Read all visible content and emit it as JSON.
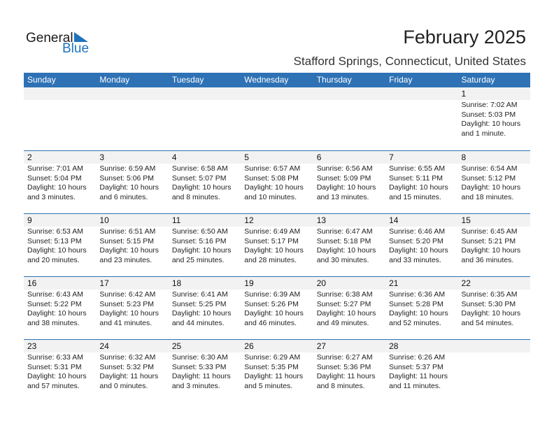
{
  "logo": {
    "general": "General",
    "blue": "Blue"
  },
  "title": "February 2025",
  "location": "Stafford Springs, Connecticut, United States",
  "days": [
    "Sunday",
    "Monday",
    "Tuesday",
    "Wednesday",
    "Thursday",
    "Friday",
    "Saturday"
  ],
  "accent": "#2e72b5",
  "weeks": [
    [
      null,
      null,
      null,
      null,
      null,
      null,
      {
        "d": "1",
        "sr": "Sunrise: 7:02 AM",
        "ss": "Sunset: 5:03 PM",
        "dl": "Daylight: 10 hours",
        "dm": "and 1 minute."
      }
    ],
    [
      {
        "d": "2",
        "sr": "Sunrise: 7:01 AM",
        "ss": "Sunset: 5:04 PM",
        "dl": "Daylight: 10 hours",
        "dm": "and 3 minutes."
      },
      {
        "d": "3",
        "sr": "Sunrise: 6:59 AM",
        "ss": "Sunset: 5:06 PM",
        "dl": "Daylight: 10 hours",
        "dm": "and 6 minutes."
      },
      {
        "d": "4",
        "sr": "Sunrise: 6:58 AM",
        "ss": "Sunset: 5:07 PM",
        "dl": "Daylight: 10 hours",
        "dm": "and 8 minutes."
      },
      {
        "d": "5",
        "sr": "Sunrise: 6:57 AM",
        "ss": "Sunset: 5:08 PM",
        "dl": "Daylight: 10 hours",
        "dm": "and 10 minutes."
      },
      {
        "d": "6",
        "sr": "Sunrise: 6:56 AM",
        "ss": "Sunset: 5:09 PM",
        "dl": "Daylight: 10 hours",
        "dm": "and 13 minutes."
      },
      {
        "d": "7",
        "sr": "Sunrise: 6:55 AM",
        "ss": "Sunset: 5:11 PM",
        "dl": "Daylight: 10 hours",
        "dm": "and 15 minutes."
      },
      {
        "d": "8",
        "sr": "Sunrise: 6:54 AM",
        "ss": "Sunset: 5:12 PM",
        "dl": "Daylight: 10 hours",
        "dm": "and 18 minutes."
      }
    ],
    [
      {
        "d": "9",
        "sr": "Sunrise: 6:53 AM",
        "ss": "Sunset: 5:13 PM",
        "dl": "Daylight: 10 hours",
        "dm": "and 20 minutes."
      },
      {
        "d": "10",
        "sr": "Sunrise: 6:51 AM",
        "ss": "Sunset: 5:15 PM",
        "dl": "Daylight: 10 hours",
        "dm": "and 23 minutes."
      },
      {
        "d": "11",
        "sr": "Sunrise: 6:50 AM",
        "ss": "Sunset: 5:16 PM",
        "dl": "Daylight: 10 hours",
        "dm": "and 25 minutes."
      },
      {
        "d": "12",
        "sr": "Sunrise: 6:49 AM",
        "ss": "Sunset: 5:17 PM",
        "dl": "Daylight: 10 hours",
        "dm": "and 28 minutes."
      },
      {
        "d": "13",
        "sr": "Sunrise: 6:47 AM",
        "ss": "Sunset: 5:18 PM",
        "dl": "Daylight: 10 hours",
        "dm": "and 30 minutes."
      },
      {
        "d": "14",
        "sr": "Sunrise: 6:46 AM",
        "ss": "Sunset: 5:20 PM",
        "dl": "Daylight: 10 hours",
        "dm": "and 33 minutes."
      },
      {
        "d": "15",
        "sr": "Sunrise: 6:45 AM",
        "ss": "Sunset: 5:21 PM",
        "dl": "Daylight: 10 hours",
        "dm": "and 36 minutes."
      }
    ],
    [
      {
        "d": "16",
        "sr": "Sunrise: 6:43 AM",
        "ss": "Sunset: 5:22 PM",
        "dl": "Daylight: 10 hours",
        "dm": "and 38 minutes."
      },
      {
        "d": "17",
        "sr": "Sunrise: 6:42 AM",
        "ss": "Sunset: 5:23 PM",
        "dl": "Daylight: 10 hours",
        "dm": "and 41 minutes."
      },
      {
        "d": "18",
        "sr": "Sunrise: 6:41 AM",
        "ss": "Sunset: 5:25 PM",
        "dl": "Daylight: 10 hours",
        "dm": "and 44 minutes."
      },
      {
        "d": "19",
        "sr": "Sunrise: 6:39 AM",
        "ss": "Sunset: 5:26 PM",
        "dl": "Daylight: 10 hours",
        "dm": "and 46 minutes."
      },
      {
        "d": "20",
        "sr": "Sunrise: 6:38 AM",
        "ss": "Sunset: 5:27 PM",
        "dl": "Daylight: 10 hours",
        "dm": "and 49 minutes."
      },
      {
        "d": "21",
        "sr": "Sunrise: 6:36 AM",
        "ss": "Sunset: 5:28 PM",
        "dl": "Daylight: 10 hours",
        "dm": "and 52 minutes."
      },
      {
        "d": "22",
        "sr": "Sunrise: 6:35 AM",
        "ss": "Sunset: 5:30 PM",
        "dl": "Daylight: 10 hours",
        "dm": "and 54 minutes."
      }
    ],
    [
      {
        "d": "23",
        "sr": "Sunrise: 6:33 AM",
        "ss": "Sunset: 5:31 PM",
        "dl": "Daylight: 10 hours",
        "dm": "and 57 minutes."
      },
      {
        "d": "24",
        "sr": "Sunrise: 6:32 AM",
        "ss": "Sunset: 5:32 PM",
        "dl": "Daylight: 11 hours",
        "dm": "and 0 minutes."
      },
      {
        "d": "25",
        "sr": "Sunrise: 6:30 AM",
        "ss": "Sunset: 5:33 PM",
        "dl": "Daylight: 11 hours",
        "dm": "and 3 minutes."
      },
      {
        "d": "26",
        "sr": "Sunrise: 6:29 AM",
        "ss": "Sunset: 5:35 PM",
        "dl": "Daylight: 11 hours",
        "dm": "and 5 minutes."
      },
      {
        "d": "27",
        "sr": "Sunrise: 6:27 AM",
        "ss": "Sunset: 5:36 PM",
        "dl": "Daylight: 11 hours",
        "dm": "and 8 minutes."
      },
      {
        "d": "28",
        "sr": "Sunrise: 6:26 AM",
        "ss": "Sunset: 5:37 PM",
        "dl": "Daylight: 11 hours",
        "dm": "and 11 minutes."
      },
      null
    ]
  ]
}
